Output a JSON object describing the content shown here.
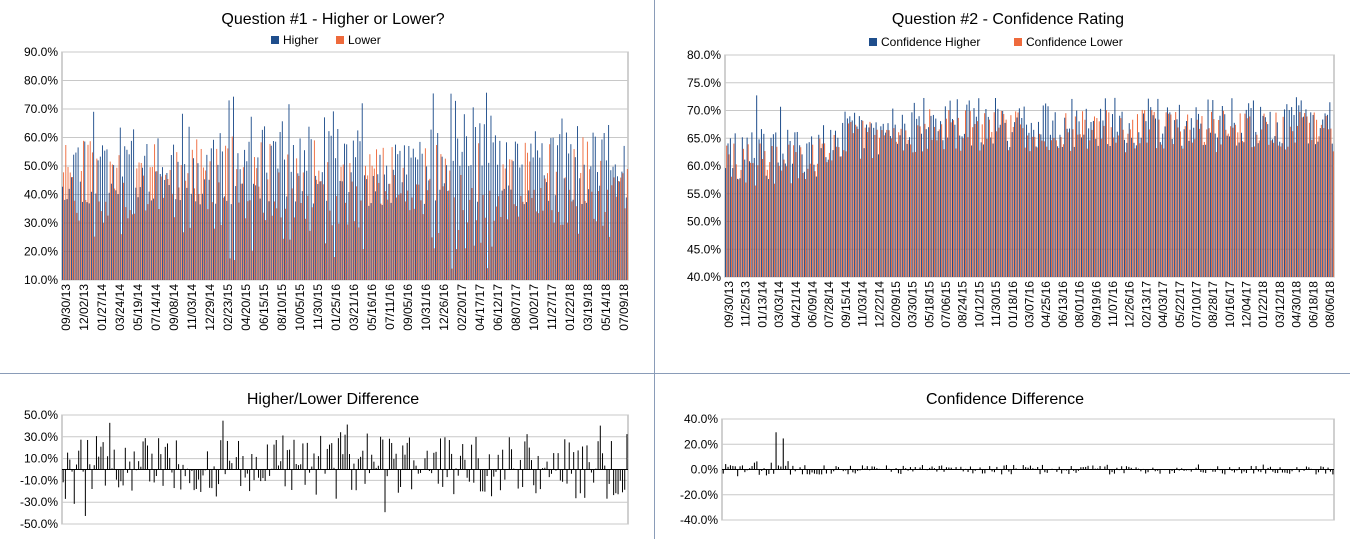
{
  "colors": {
    "higher": "#1f4e8c",
    "lower": "#ee6a3c",
    "diff": "#000000",
    "grid": "#c8c8c8",
    "divider": "#8a9cb8"
  },
  "chart_data": [
    {
      "id": "q1",
      "type": "bar",
      "title": "Question #1 - Higher or Lower?",
      "series": [
        {
          "name": "Higher"
        },
        {
          "name": "Lower"
        }
      ],
      "yticks": [
        "90.0%",
        "80.0%",
        "70.0%",
        "60.0%",
        "50.0%",
        "40.0%",
        "30.0%",
        "20.0%",
        "10.0%"
      ],
      "ylim": [
        10,
        90
      ],
      "xlabels": [
        "09/30/13",
        "12/02/13",
        "01/27/14",
        "03/24/14",
        "05/19/14",
        "07/14/14",
        "09/08/14",
        "11/03/14",
        "12/29/14",
        "02/23/15",
        "04/20/15",
        "06/15/15",
        "08/10/15",
        "10/05/15",
        "11/30/15",
        "01/25/16",
        "03/21/16",
        "05/16/16",
        "07/11/16",
        "09/05/16",
        "10/31/16",
        "12/26/16",
        "02/20/17",
        "04/17/17",
        "06/12/17",
        "08/07/17",
        "10/02/17",
        "11/27/17",
        "01/22/18",
        "03/19/18",
        "05/14/18",
        "07/09/18"
      ],
      "legend_position": "top"
    },
    {
      "id": "q2",
      "type": "bar",
      "title": "Question #2 - Confidence Rating",
      "series": [
        {
          "name": "Confidence Higher"
        },
        {
          "name": "Confidence Lower"
        }
      ],
      "yticks": [
        "80.0%",
        "75.0%",
        "70.0%",
        "65.0%",
        "60.0%",
        "55.0%",
        "50.0%",
        "45.0%",
        "40.0%"
      ],
      "ylim": [
        40,
        80
      ],
      "xlabels": [
        "09/30/13",
        "11/25/13",
        "01/13/14",
        "03/03/14",
        "04/21/14",
        "06/09/14",
        "07/28/14",
        "09/15/14",
        "11/03/14",
        "12/22/14",
        "02/09/15",
        "03/30/15",
        "05/18/15",
        "07/06/15",
        "08/24/15",
        "10/12/15",
        "11/30/15",
        "01/18/16",
        "03/07/16",
        "04/25/16",
        "06/13/16",
        "08/01/16",
        "09/19/16",
        "11/07/16",
        "12/26/16",
        "02/13/17",
        "04/03/17",
        "05/22/17",
        "07/10/17",
        "08/28/17",
        "10/16/17",
        "12/04/17",
        "01/22/18",
        "03/12/18",
        "04/30/18",
        "06/18/18",
        "08/06/18"
      ],
      "legend_position": "top"
    },
    {
      "id": "d1",
      "type": "bar",
      "title": "Higher/Lower Difference",
      "yticks": [
        "50.0%",
        "30.0%",
        "10.0%",
        "-10.0%",
        "-30.0%",
        "-50.0%"
      ],
      "ylim": [
        -50,
        50
      ]
    },
    {
      "id": "d2",
      "type": "bar",
      "title": "Confidence Difference",
      "yticks": [
        "40.0%",
        "20.0%",
        "0.0%",
        "-20.0%",
        "-40.0%"
      ],
      "ylim": [
        -40,
        40
      ]
    }
  ]
}
